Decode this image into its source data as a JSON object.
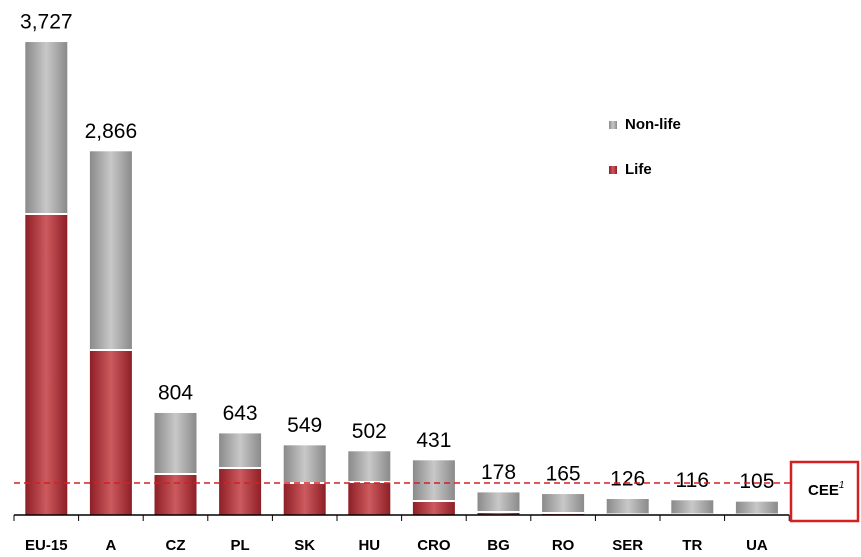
{
  "chart_data": {
    "type": "stacked_bar",
    "categories": [
      "EU-15",
      "A",
      "CZ",
      "PL",
      "SK",
      "HU",
      "CRO",
      "BG",
      "RO",
      "SER",
      "TR",
      "UA"
    ],
    "series": [
      {
        "name": "Life",
        "color": "#b3363c",
        "values": [
          2372,
          1300,
          323,
          370,
          252,
          260,
          110,
          24,
          16,
          5,
          5,
          4
        ]
      },
      {
        "name": "Non-life",
        "color": "#a3a3a3",
        "values": [
          1355,
          1566,
          481,
          273,
          297,
          242,
          321,
          154,
          149,
          121,
          111,
          101
        ]
      }
    ],
    "totals": [
      3727,
      2866,
      804,
      643,
      549,
      502,
      431,
      178,
      165,
      126,
      116,
      105
    ],
    "total_labels": [
      "3,727",
      "2,866",
      "804",
      "643",
      "549",
      "502",
      "431",
      "178",
      "165",
      "126",
      "116",
      "105"
    ],
    "reference_line": {
      "label": "CEE",
      "superscript": "1",
      "value": 252,
      "color": "#d42020"
    }
  }
}
